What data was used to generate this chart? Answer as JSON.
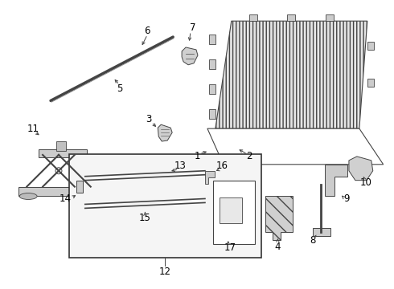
{
  "bg_color": "#ffffff",
  "line_color": "#444444",
  "text_color": "#000000",
  "fig_width": 4.9,
  "fig_height": 3.6,
  "dpi": 100
}
